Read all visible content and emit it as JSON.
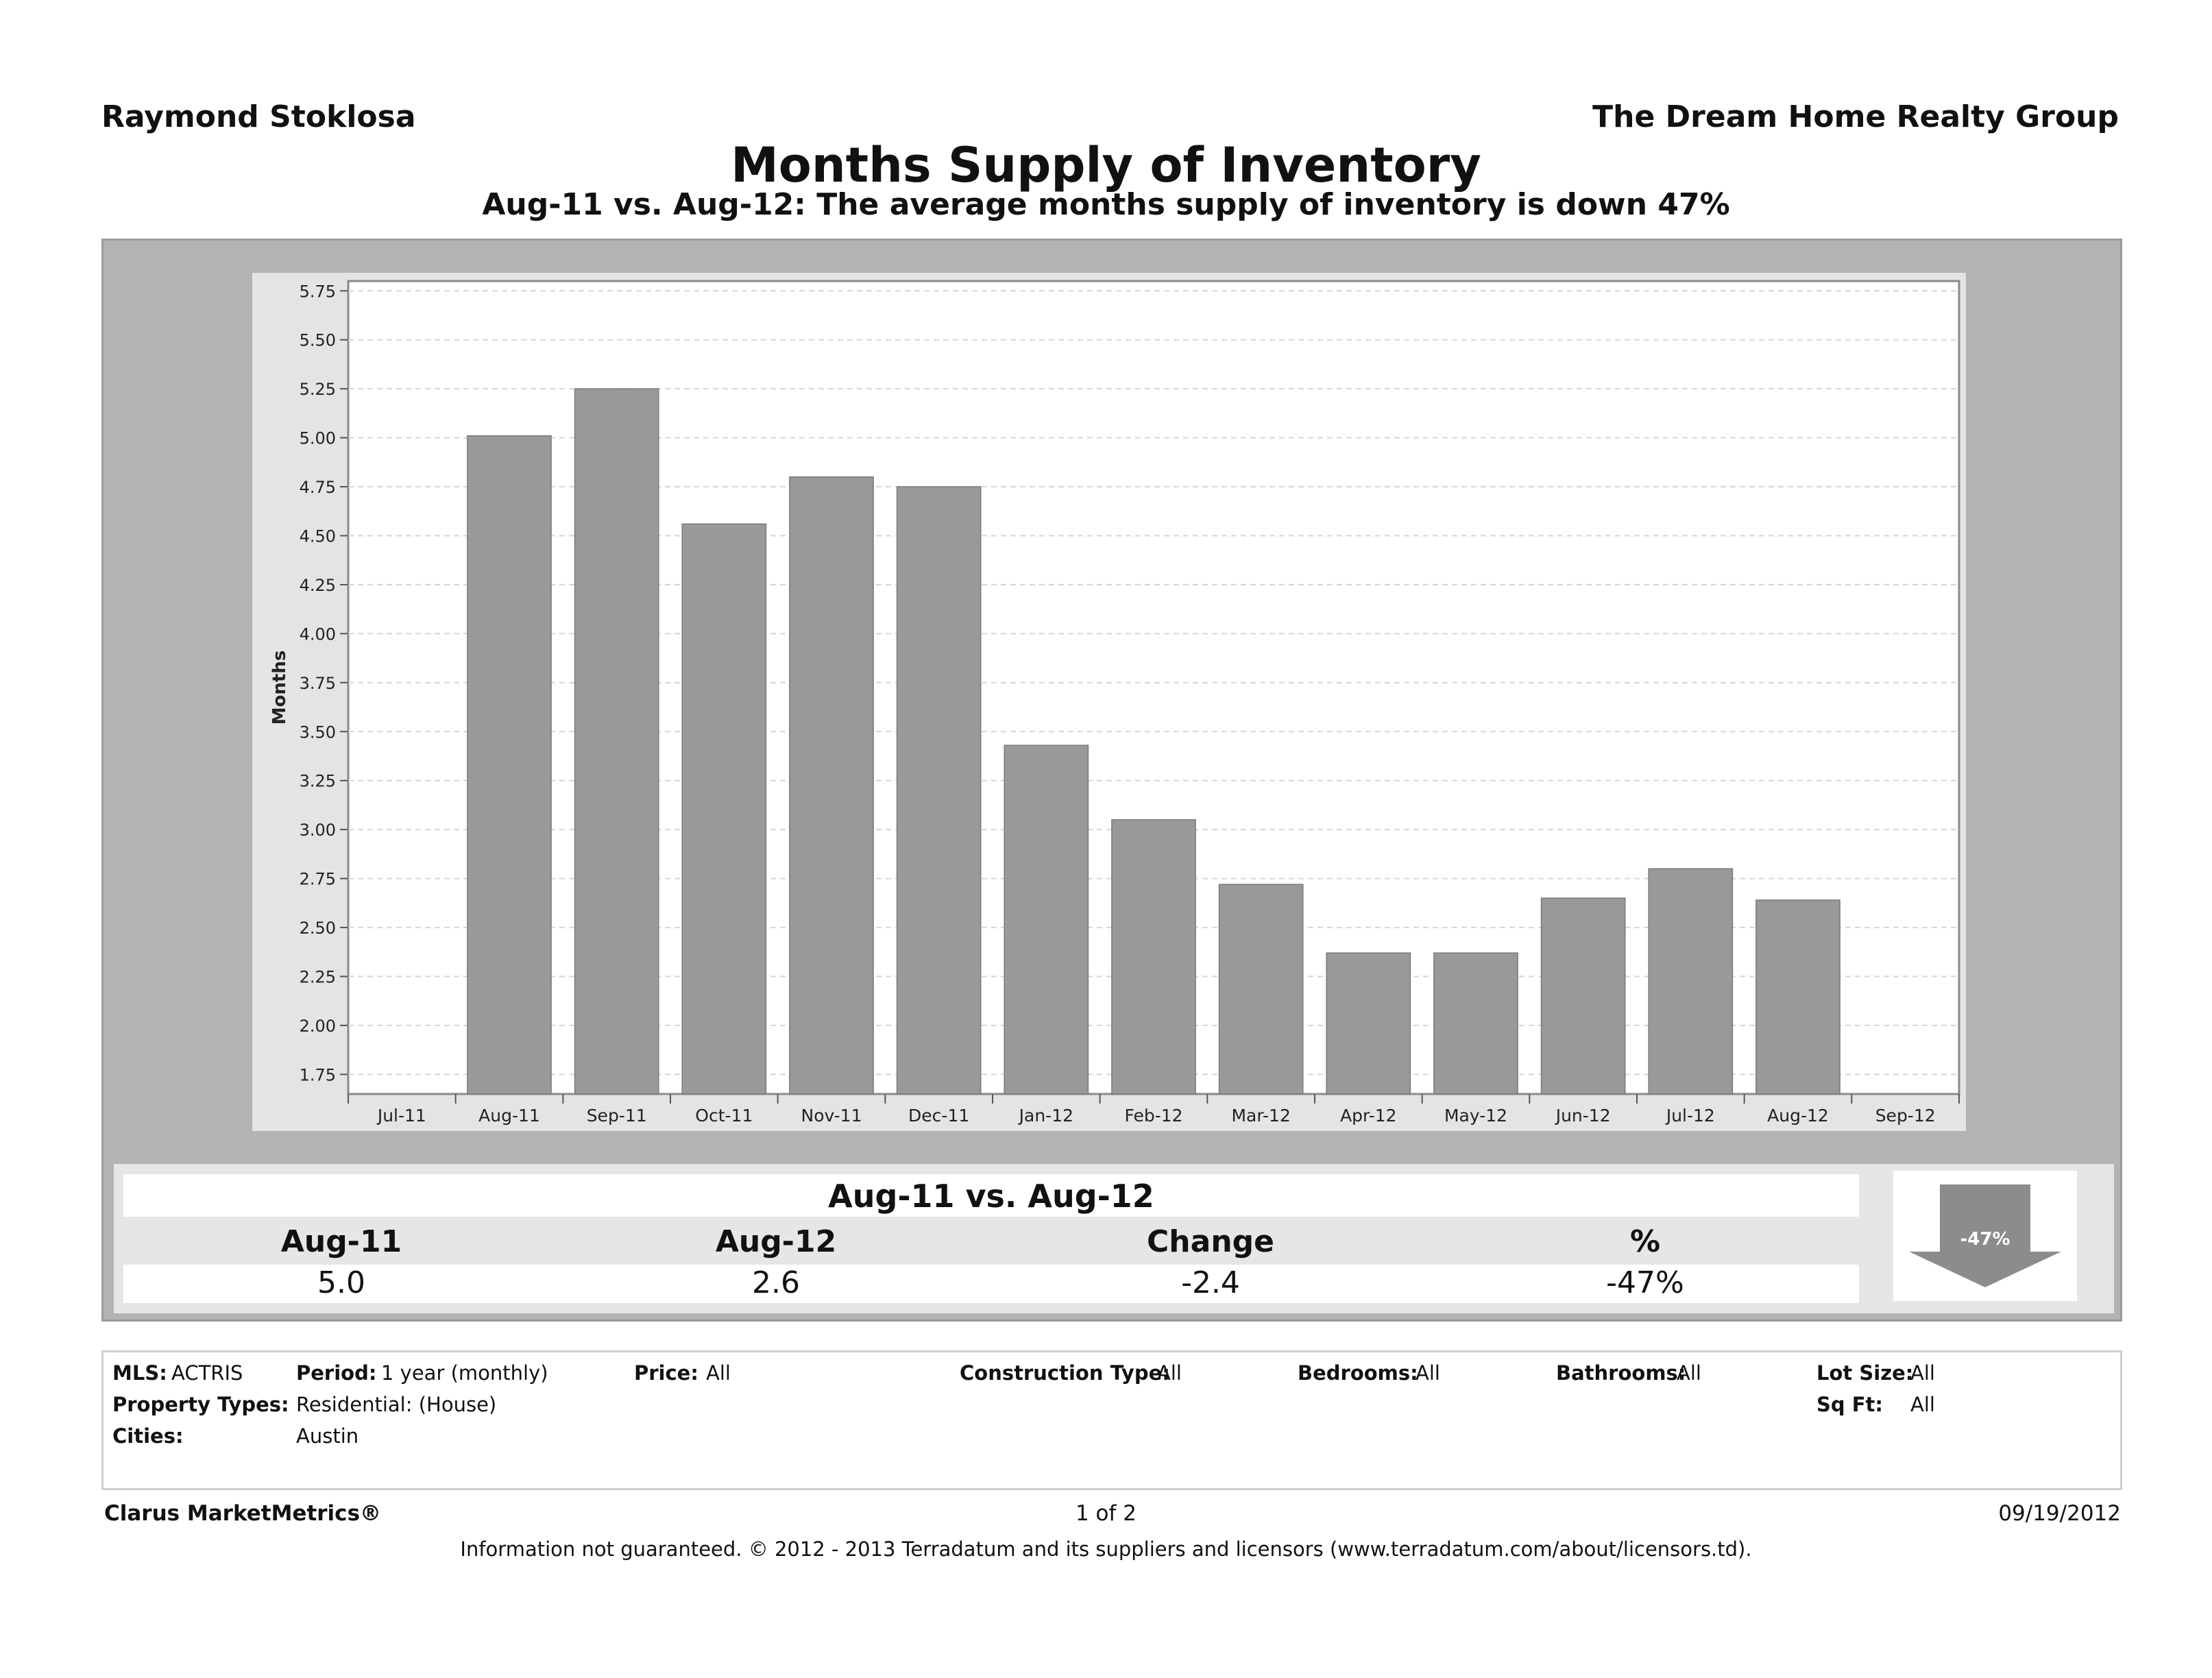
{
  "header": {
    "agent_name": "Raymond Stoklosa",
    "company_name": "The Dream Home Realty Group",
    "title": "Months Supply of Inventory",
    "subtitle": "Aug-11 vs. Aug-12:  The average months supply of inventory is down 47%"
  },
  "chart_data": {
    "type": "bar",
    "ylabel": "Months",
    "xlabel": "",
    "ylim": [
      1.65,
      5.8
    ],
    "y_ticks": [
      "1.75",
      "2.00",
      "2.25",
      "2.50",
      "2.75",
      "3.00",
      "3.25",
      "3.50",
      "3.75",
      "4.00",
      "4.25",
      "4.50",
      "4.75",
      "5.00",
      "5.25",
      "5.50",
      "5.75"
    ],
    "x_tick_labels": [
      "Jul-11",
      "Aug-11",
      "Sep-11",
      "Oct-11",
      "Nov-11",
      "Dec-11",
      "Jan-12",
      "Feb-12",
      "Mar-12",
      "Apr-12",
      "May-12",
      "Jun-12",
      "Jul-12",
      "Aug-12",
      "Sep-12"
    ],
    "categories": [
      "Aug-11",
      "Sep-11",
      "Oct-11",
      "Nov-11",
      "Dec-11",
      "Jan-12",
      "Feb-12",
      "Mar-12",
      "Apr-12",
      "May-12",
      "Jun-12",
      "Jul-12",
      "Aug-12"
    ],
    "values": [
      5.01,
      5.25,
      4.56,
      4.8,
      4.75,
      3.43,
      3.05,
      2.72,
      2.37,
      2.37,
      2.65,
      2.8,
      2.64
    ],
    "grid": true,
    "bar_color": "#999999"
  },
  "summary": {
    "title": "Aug-11 vs. Aug-12",
    "headers": [
      "Aug-11",
      "Aug-12",
      "Change",
      "%"
    ],
    "values": [
      "5.0",
      "2.6",
      "-2.4",
      "-47%"
    ],
    "arrow_label": "-47%",
    "arrow_direction": "down-arrow-icon"
  },
  "filters": {
    "mls_label": "MLS:",
    "mls_value": "ACTRIS",
    "period_label": "Period:",
    "period_value": "1 year (monthly)",
    "price_label": "Price:",
    "price_value": "All",
    "construction_label": "Construction Type:",
    "construction_value": "All",
    "bedrooms_label": "Bedrooms:",
    "bedrooms_value": "All",
    "bathrooms_label": "Bathrooms:",
    "bathrooms_value": "All",
    "lot_size_label": "Lot Size:",
    "lot_size_value": "All",
    "property_types_label": "Property Types:",
    "property_types_value": "Residential: (House)",
    "sqft_label": "Sq Ft:",
    "sqft_value": "All",
    "cities_label": "Cities:",
    "cities_value": "Austin"
  },
  "footer": {
    "brand": "Clarus MarketMetrics®",
    "page": "1 of 2",
    "date": "09/19/2012",
    "disclaimer": "Information not guaranteed.  © 2012 - 2013 Terradatum and its suppliers and licensors (www.terradatum.com/about/licensors.td)."
  }
}
